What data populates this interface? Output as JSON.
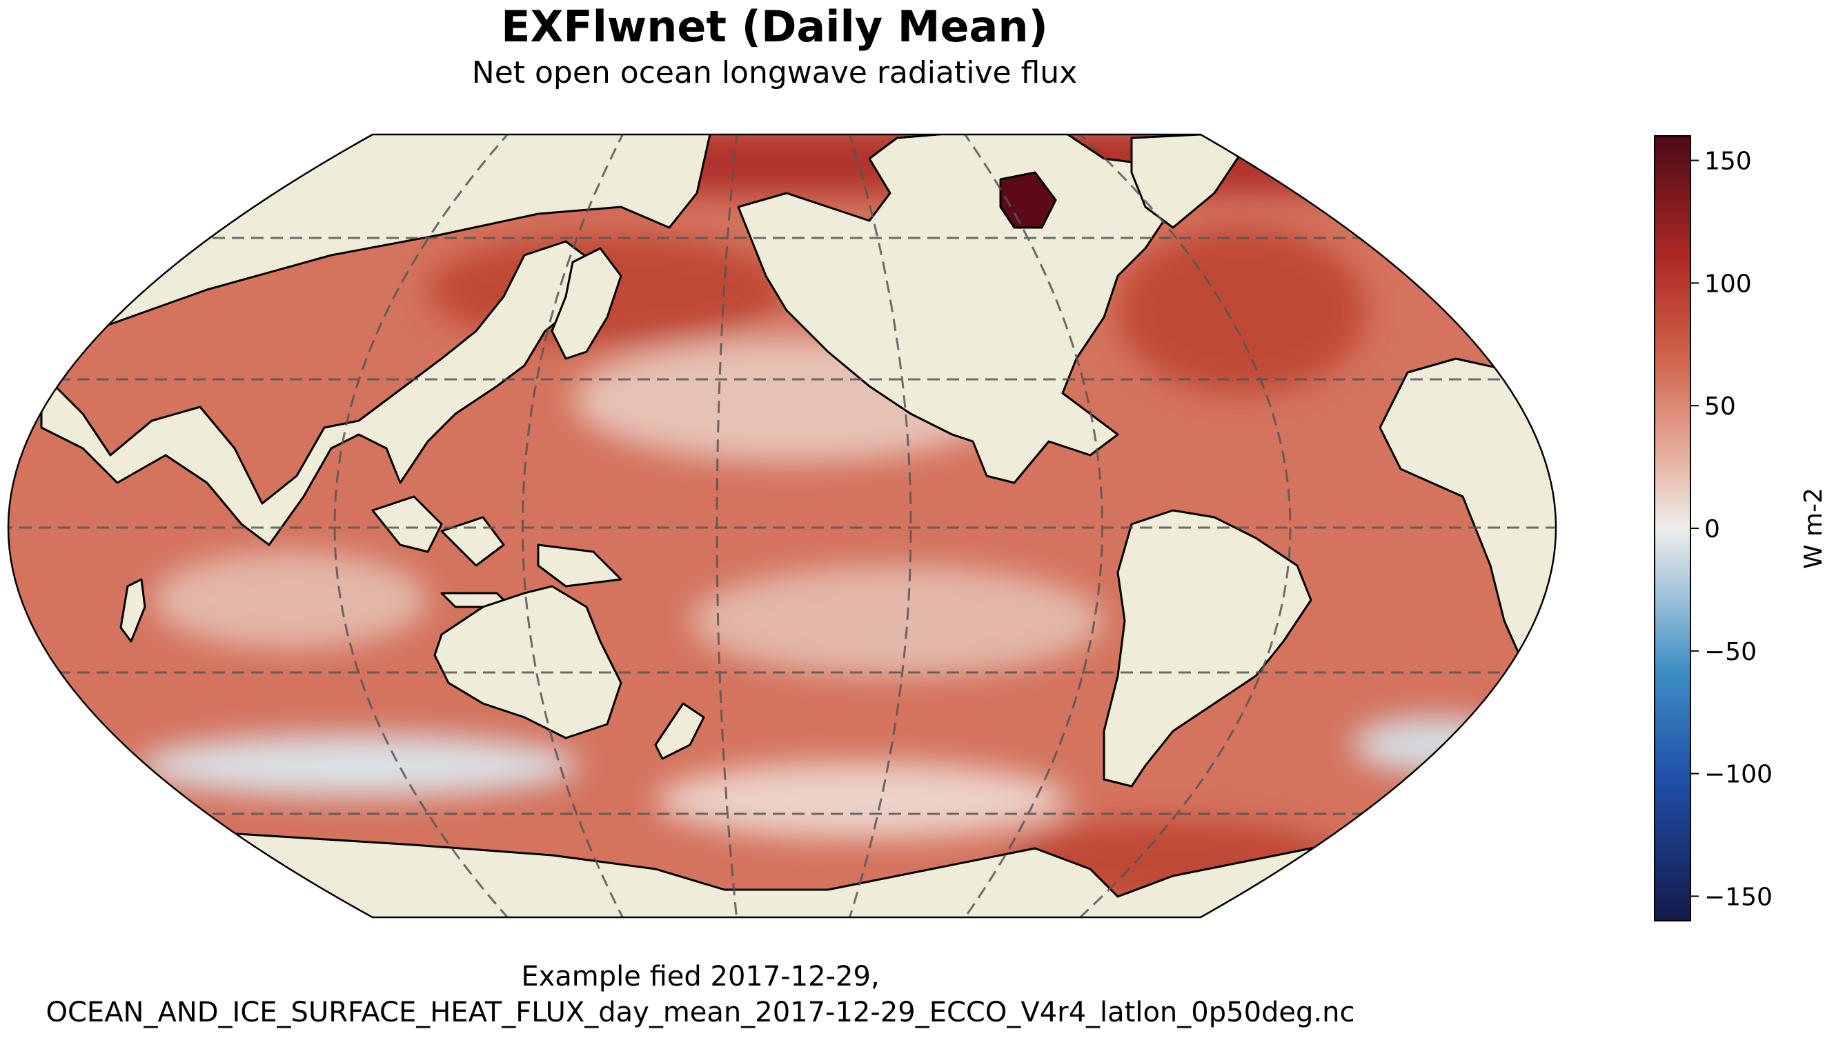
{
  "title": "EXFlwnet (Daily Mean)",
  "subtitle": "Net open ocean longwave radiative flux",
  "caption": {
    "line1": "Example fied 2017-12-29,",
    "line2": "OCEAN_AND_ICE_SURFACE_HEAT_FLUX_day_mean_2017-12-29_ECCO_V4r4_latlon_0p50deg.nc"
  },
  "colorbar": {
    "label": "W m-2",
    "range": [
      -160,
      160
    ],
    "ticks": [
      {
        "value": 150,
        "label": "150"
      },
      {
        "value": 100,
        "label": "100"
      },
      {
        "value": 50,
        "label": "50"
      },
      {
        "value": 0,
        "label": "0"
      },
      {
        "value": -50,
        "label": "−50"
      },
      {
        "value": -100,
        "label": "−100"
      },
      {
        "value": -150,
        "label": "−150"
      }
    ]
  },
  "colors": {
    "land": "#efedda",
    "ocean_base": "#d4735e",
    "ocean_warm": "#b83a2a",
    "ocean_light": "#eacdc2",
    "ice_cold": "#dbe2e8",
    "hot": "#5c0a17"
  },
  "map": {
    "projection": "Robinson",
    "central_longitude": -170,
    "gridlines": "dashed"
  }
}
